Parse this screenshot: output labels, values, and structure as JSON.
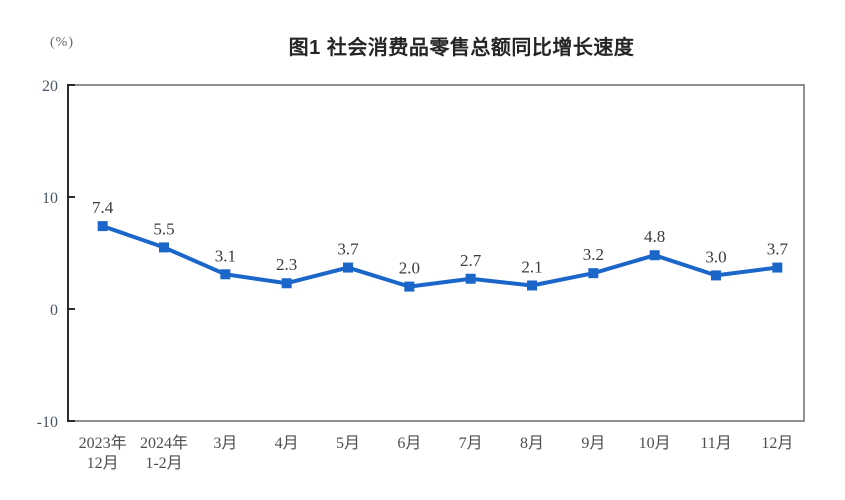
{
  "header": {
    "title": "图1 社会消费品零售总额同比增长速度",
    "unit_label": "(%)"
  },
  "chart_data": {
    "type": "line",
    "title": "图1 社会消费品零售总额同比增长速度",
    "unit": "(%)",
    "series_name": "社会消费品零售总额同比增长速度",
    "categories": [
      "2023年\n12月",
      "2024年\n1-2月",
      "3月",
      "4月",
      "5月",
      "6月",
      "7月",
      "8月",
      "9月",
      "10月",
      "11月",
      "12月"
    ],
    "values": [
      7.4,
      5.5,
      3.1,
      2.3,
      3.7,
      2.0,
      2.7,
      2.1,
      3.2,
      4.8,
      3.0,
      3.7
    ],
    "ylim": [
      -10,
      20
    ],
    "yticks": [
      20,
      10,
      0,
      -10
    ],
    "grid": false,
    "legend": "none",
    "marker": "square"
  },
  "colors": {
    "line": "#1B66C9",
    "frame": "#8F8F8F",
    "axis": "#2B2B2B",
    "y_tick_label": "#4A5568",
    "x_tick_label": "#4E4E52",
    "data_label": "#3B3B3F",
    "title": "#252525",
    "unit": "#6E635E",
    "background": "#FFFFFF"
  }
}
